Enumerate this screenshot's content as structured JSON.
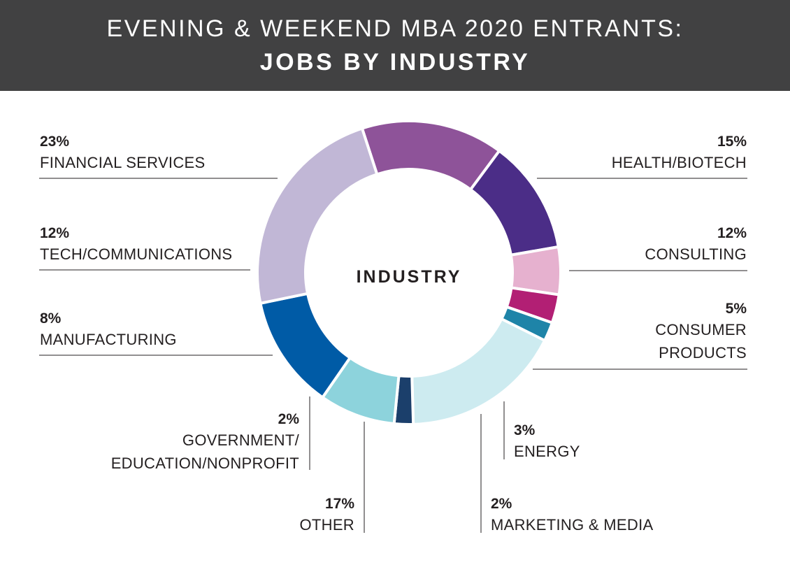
{
  "header": {
    "title_line1": "EVENING & WEEKEND MBA 2020 ENTRANTS:",
    "title_line2": "JOBS BY INDUSTRY"
  },
  "chart_data": {
    "type": "pie",
    "title": "EVENING & WEEKEND MBA 2020 ENTRANTS: JOBS BY INDUSTRY",
    "center_label": "INDUSTRY",
    "unit": "%",
    "slices": [
      {
        "key": "health",
        "label_lines": [
          "HEALTH/BIOTECH"
        ],
        "value": 15,
        "pct_label": "15%",
        "color": "#8e5399"
      },
      {
        "key": "consulting",
        "label_lines": [
          "CONSULTING"
        ],
        "value": 12,
        "pct_label": "12%",
        "color": "#4b2d87"
      },
      {
        "key": "consumer",
        "label_lines": [
          "CONSUMER",
          "PRODUCTS"
        ],
        "value": 5,
        "pct_label": "5%",
        "color": "#e6b1cf"
      },
      {
        "key": "energy",
        "label_lines": [
          "ENERGY"
        ],
        "value": 3,
        "pct_label": "3%",
        "color": "#b21f74"
      },
      {
        "key": "marketing",
        "label_lines": [
          "MARKETING & MEDIA"
        ],
        "value": 2,
        "pct_label": "2%",
        "color": "#1e84a8"
      },
      {
        "key": "other",
        "label_lines": [
          "OTHER"
        ],
        "value": 17,
        "pct_label": "17%",
        "color": "#cdebf0"
      },
      {
        "key": "government",
        "label_lines": [
          "GOVERNMENT/",
          "EDUCATION/NONPROFIT"
        ],
        "value": 2,
        "pct_label": "2%",
        "color": "#1b3f6b"
      },
      {
        "key": "manufacturing",
        "label_lines": [
          "MANUFACTURING"
        ],
        "value": 8,
        "pct_label": "8%",
        "color": "#8dd3dc"
      },
      {
        "key": "tech",
        "label_lines": [
          "TECH/COMMUNICATIONS"
        ],
        "value": 12,
        "pct_label": "12%",
        "color": "#005ba6"
      },
      {
        "key": "financial",
        "label_lines": [
          "FINANCIAL SERVICES"
        ],
        "value": 23,
        "pct_label": "23%",
        "color": "#c1b7d6"
      }
    ]
  }
}
